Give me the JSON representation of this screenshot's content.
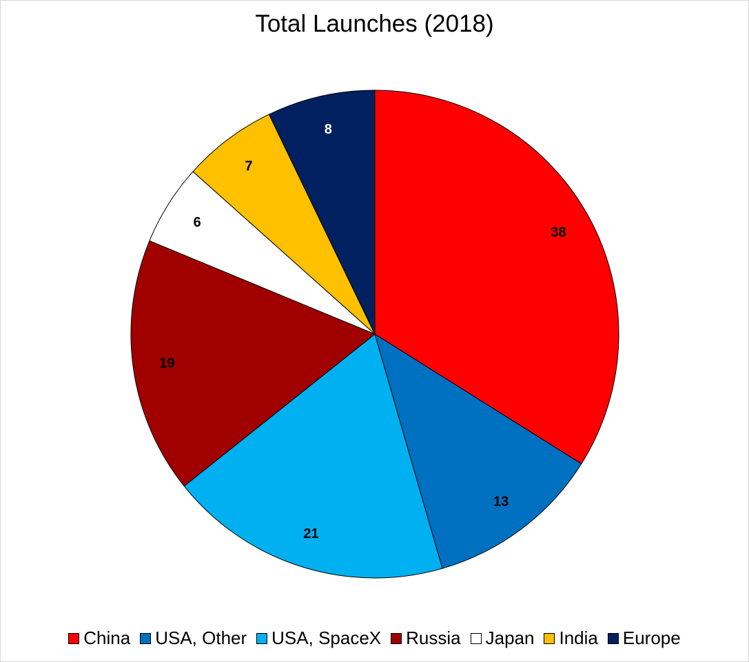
{
  "chart_data": {
    "type": "pie",
    "title": "Total Launches (2018)",
    "categories": [
      "China",
      "USA, Other",
      "USA, SpaceX",
      "Russia",
      "Japan",
      "India",
      "Europe"
    ],
    "values": [
      38,
      13,
      21,
      19,
      6,
      7,
      8
    ],
    "colors": [
      "#ff0000",
      "#0070c0",
      "#00b0f0",
      "#a00000",
      "#ffffff",
      "#ffc000",
      "#002060"
    ],
    "label_colors": [
      "#000000",
      "#000000",
      "#000000",
      "#000000",
      "#000000",
      "#000000",
      "#ffffff"
    ],
    "start_angle": "12 o'clock",
    "direction": "clockwise",
    "legend_position": "bottom"
  }
}
